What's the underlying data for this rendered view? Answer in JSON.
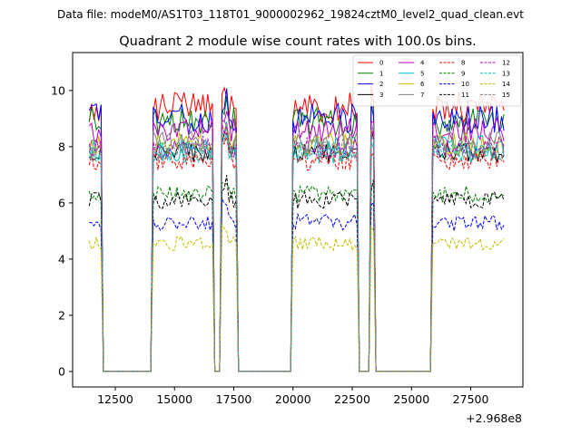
{
  "chart_data": {
    "type": "line",
    "suptitle": "Data file: modeM0/AS1T03_118T01_9000002962_19824cztM0_level2_quad_clean.evt",
    "title": "Quadrant 2 module wise count rates with 100.0s bins.",
    "xlabel": "",
    "ylabel": "",
    "x_offset_label": "+2.968e8",
    "xlim": [
      10700,
      29700
    ],
    "ylim": [
      -0.55,
      11.35
    ],
    "xticks": [
      12500,
      15000,
      17500,
      20000,
      22500,
      25000,
      27500
    ],
    "yticks": [
      0,
      2,
      4,
      6,
      8,
      10
    ],
    "x_start": 11400,
    "x_step": 100,
    "x_end": 28900,
    "segments": [
      {
        "from": 11400,
        "to": 11900,
        "level": "on"
      },
      {
        "from": 12000,
        "to": 14000,
        "level": "off"
      },
      {
        "from": 14100,
        "to": 16600,
        "level": "on"
      },
      {
        "from": 16700,
        "to": 16900,
        "level": "off"
      },
      {
        "from": 17000,
        "to": 17600,
        "level": "on"
      },
      {
        "from": 17700,
        "to": 19900,
        "level": "off"
      },
      {
        "from": 20000,
        "to": 22700,
        "level": "on"
      },
      {
        "from": 22800,
        "to": 23200,
        "level": "off"
      },
      {
        "from": 23300,
        "to": 23400,
        "level": "on"
      },
      {
        "from": 23500,
        "to": 25800,
        "level": "off"
      },
      {
        "from": 25900,
        "to": 28900,
        "level": "on"
      }
    ],
    "series": [
      {
        "name": "0",
        "color": "#ff0000",
        "dash": "solid",
        "mean": 9.4,
        "amp": 0.55
      },
      {
        "name": "1",
        "color": "#008000",
        "dash": "solid",
        "mean": 8.9,
        "amp": 0.5
      },
      {
        "name": "2",
        "color": "#0000ff",
        "dash": "solid",
        "mean": 9.0,
        "amp": 0.55
      },
      {
        "name": "3",
        "color": "#000000",
        "dash": "solid",
        "mean": 7.8,
        "amp": 0.35
      },
      {
        "name": "4",
        "color": "#bf00bf",
        "dash": "solid",
        "mean": 8.6,
        "amp": 0.45
      },
      {
        "name": "5",
        "color": "#00bfbf",
        "dash": "solid",
        "mean": 7.9,
        "amp": 0.5
      },
      {
        "name": "6",
        "color": "#bfbf00",
        "dash": "solid",
        "mean": 8.1,
        "amp": 0.4
      },
      {
        "name": "7",
        "color": "#808080",
        "dash": "solid",
        "mean": 8.2,
        "amp": 0.4
      },
      {
        "name": "8",
        "color": "#ff0000",
        "dash": "dashed",
        "mean": 7.5,
        "amp": 0.35
      },
      {
        "name": "9",
        "color": "#008000",
        "dash": "dashed",
        "mean": 6.3,
        "amp": 0.3
      },
      {
        "name": "10",
        "color": "#0000ff",
        "dash": "dashed",
        "mean": 5.3,
        "amp": 0.3
      },
      {
        "name": "11",
        "color": "#000000",
        "dash": "dashed",
        "mean": 6.1,
        "amp": 0.3
      },
      {
        "name": "12",
        "color": "#bf00bf",
        "dash": "dashed",
        "mean": 8.0,
        "amp": 0.4
      },
      {
        "name": "13",
        "color": "#00bfbf",
        "dash": "dashed",
        "mean": 7.8,
        "amp": 0.35
      },
      {
        "name": "14",
        "color": "#bfbf00",
        "dash": "dashed",
        "mean": 4.55,
        "amp": 0.25
      },
      {
        "name": "15",
        "color": "#808080",
        "dash": "dashed",
        "mean": 7.9,
        "amp": 0.4
      }
    ],
    "legend_loc": "upper right"
  }
}
